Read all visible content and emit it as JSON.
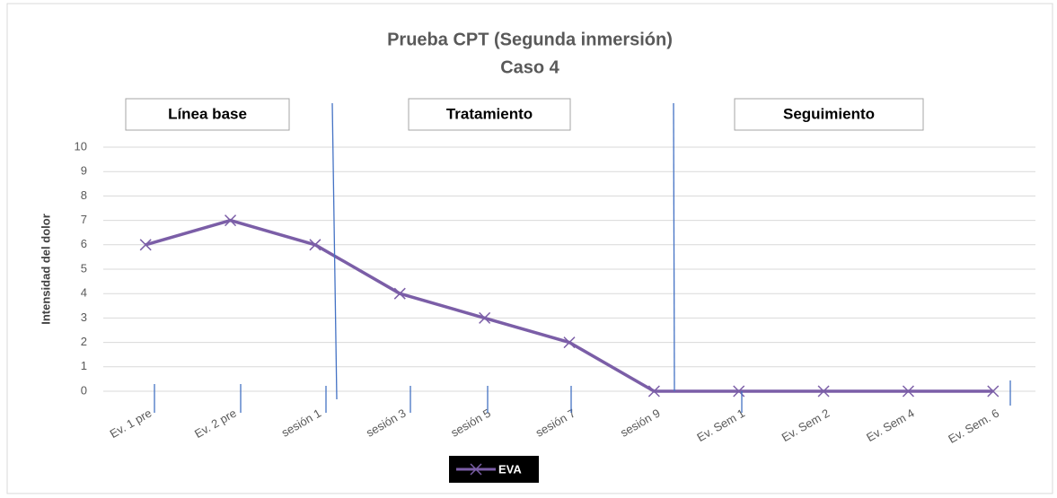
{
  "chart_data": {
    "type": "line",
    "title": "Prueba CPT (Segunda inmersión)",
    "subtitle": "Caso 4",
    "y_label": "Intensidad del dolor",
    "phases": [
      "Línea base",
      "Tratamiento",
      "Seguimiento"
    ],
    "categories": [
      "Ev. 1 pre",
      "Ev. 2 pre",
      "sesión 1",
      "sesión 3",
      "sesión 5",
      "sesión 7",
      "sesión 9",
      "Ev. Sem 1",
      "Ev. Sem 2",
      "Ev. Sem 4",
      "Ev. Sem. 6"
    ],
    "series": [
      {
        "name": "EVA",
        "color": "#7b5ea7",
        "values": [
          6,
          7,
          6,
          4,
          3,
          2,
          0,
          0,
          0,
          0,
          0
        ]
      }
    ],
    "ylim": [
      0,
      10
    ],
    "yticks": [
      0,
      1,
      2,
      3,
      4,
      5,
      6,
      7,
      8,
      9,
      10
    ],
    "grid": true
  }
}
